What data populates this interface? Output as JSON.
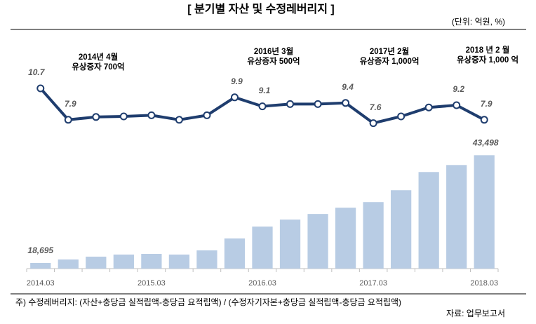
{
  "chart_data": {
    "type": "combo",
    "title": "[ 분기별 자산 및 수정레버리지 ]",
    "unit": "(단위: 억원, %)",
    "categories": [
      "2014.03",
      null,
      null,
      null,
      "2015.03",
      null,
      null,
      null,
      "2016.03",
      null,
      null,
      null,
      "2017.03",
      null,
      null,
      null,
      "2018.03"
    ],
    "ylim": [
      4,
      12
    ],
    "y2lim": [
      17400,
      45000
    ],
    "series": [
      {
        "type": "line",
        "color": "#1f3d6e",
        "values": [
          10.7,
          7.9,
          8.15,
          8.2,
          8.3,
          7.9,
          8.3,
          9.9,
          9.1,
          9.3,
          9.3,
          9.4,
          7.6,
          8.2,
          9.0,
          9.2,
          7.9
        ],
        "value_labels": [
          "10.7",
          "7.9",
          null,
          null,
          null,
          null,
          null,
          "9.9",
          "9.1",
          null,
          null,
          "9.4",
          "7.6",
          null,
          null,
          "9.2",
          "7.9"
        ]
      },
      {
        "type": "bar",
        "axis": "y2",
        "color": "#b8cce4",
        "values": [
          18695,
          19500,
          20150,
          20630,
          20790,
          20630,
          21590,
          24330,
          27070,
          28680,
          29970,
          31420,
          32700,
          35440,
          39630,
          41240,
          43498
        ],
        "value_labels": [
          "18,695",
          null,
          null,
          null,
          null,
          null,
          null,
          null,
          null,
          null,
          null,
          null,
          null,
          null,
          null,
          null,
          "43,498"
        ]
      }
    ],
    "annotations": [
      [
        "2014년 4월",
        "유상증자 700억"
      ],
      [
        "2016년 3월",
        "유상증자 500억"
      ],
      [
        "2017년 2월",
        "유상증자 1,000억"
      ],
      [
        "2018 년 2 월",
        "유상증자 1,000 억"
      ]
    ],
    "footnote": "주) 수정레버리지: (자산+충당금 실적립액-충당금 요적립액) / (수정자기자본+충당금 실적립액-충당금 요적립액)",
    "source": "자료: 업무보고서"
  }
}
